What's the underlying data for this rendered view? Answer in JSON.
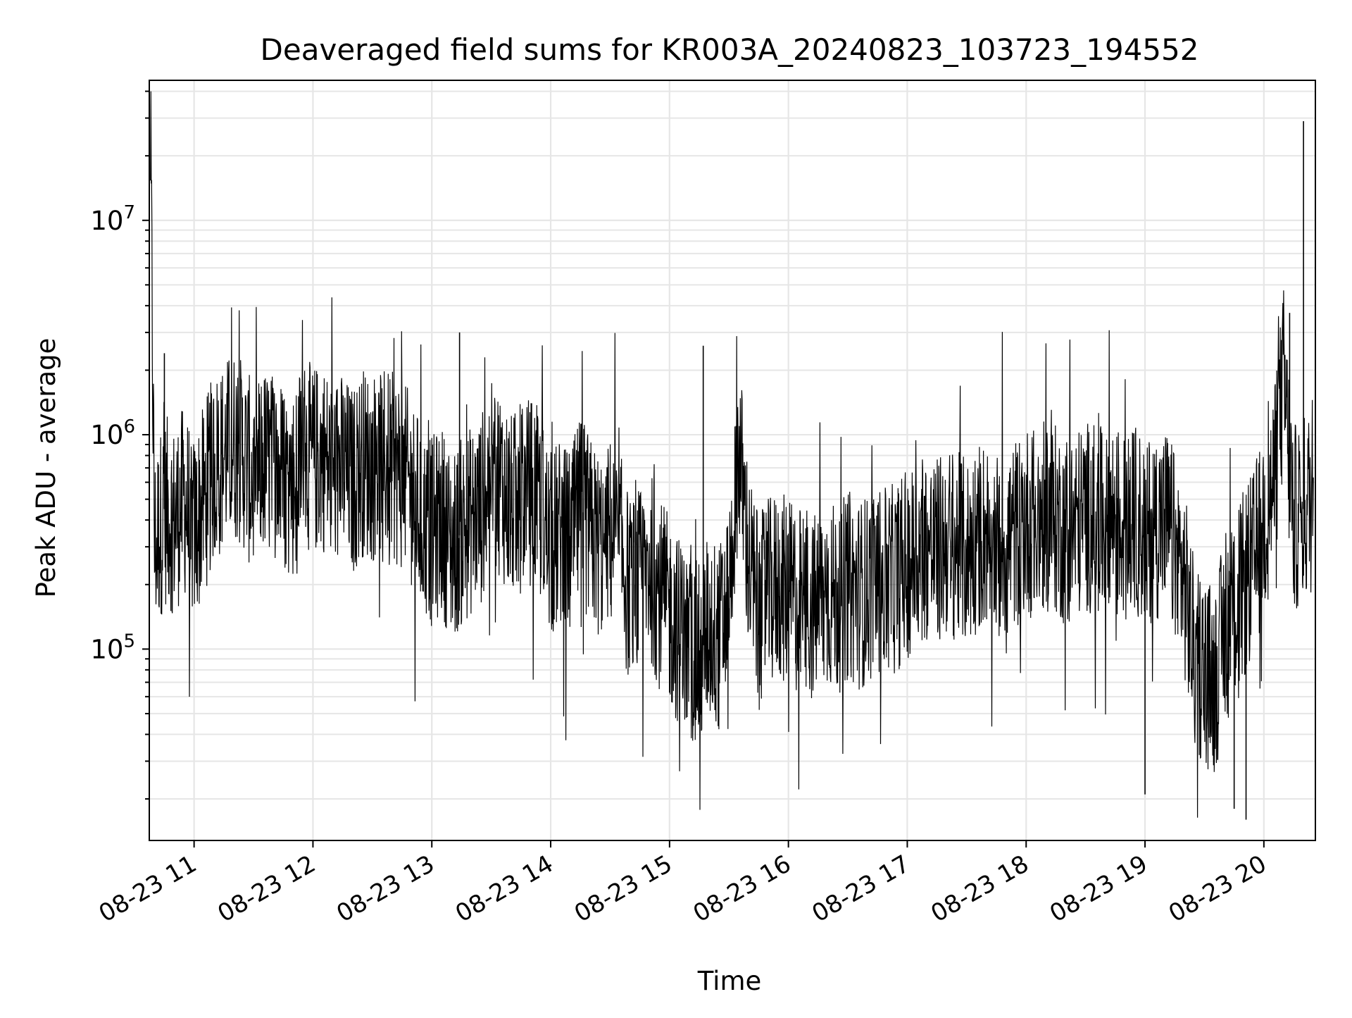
{
  "chart_data": {
    "type": "line",
    "title": "Deaveraged field sums for KR003A_20240823_103723_194552",
    "xlabel": "Time",
    "ylabel": "Peak ADU - average",
    "yscale": "log",
    "xlim": [
      "2024-08-23 10:37:23",
      "2024-08-23 20:26:00"
    ],
    "ylim": [
      12800,
      45000000
    ],
    "grid": true,
    "grid_color": "#e6e6e6",
    "line_color": "#000000",
    "x_tick_labels": [
      "08-23 11",
      "08-23 12",
      "08-23 13",
      "08-23 14",
      "08-23 15",
      "08-23 16",
      "08-23 17",
      "08-23 18",
      "08-23 19",
      "08-23 20"
    ],
    "x_ticks": [
      "2024-08-23 11:00",
      "2024-08-23 12:00",
      "2024-08-23 13:00",
      "2024-08-23 14:00",
      "2024-08-23 15:00",
      "2024-08-23 16:00",
      "2024-08-23 17:00",
      "2024-08-23 18:00",
      "2024-08-23 19:00",
      "2024-08-23 20:00"
    ],
    "y_ticks": [
      {
        "value": 100000,
        "base": "10",
        "exp": "5"
      },
      {
        "value": 1000000,
        "base": "10",
        "exp": "6"
      },
      {
        "value": 10000000,
        "base": "10",
        "exp": "7"
      }
    ],
    "series": [
      {
        "x": [
          "2024-08-23 10:38",
          "2024-08-23 10:40",
          "2024-08-23 10:45",
          "2024-08-23 10:50",
          "2024-08-23 10:55",
          "2024-08-23 11:00",
          "2024-08-23 11:05",
          "2024-08-23 11:10",
          "2024-08-23 11:15",
          "2024-08-23 11:20",
          "2024-08-23 11:25",
          "2024-08-23 11:30",
          "2024-08-23 11:35",
          "2024-08-23 11:40",
          "2024-08-23 11:45",
          "2024-08-23 11:50",
          "2024-08-23 11:55",
          "2024-08-23 12:00",
          "2024-08-23 12:05",
          "2024-08-23 12:10",
          "2024-08-23 12:15",
          "2024-08-23 12:20",
          "2024-08-23 12:25",
          "2024-08-23 12:30",
          "2024-08-23 12:35",
          "2024-08-23 12:40",
          "2024-08-23 12:45",
          "2024-08-23 12:50",
          "2024-08-23 12:55",
          "2024-08-23 13:00",
          "2024-08-23 13:05",
          "2024-08-23 13:10",
          "2024-08-23 13:15",
          "2024-08-23 13:20",
          "2024-08-23 13:25",
          "2024-08-23 13:30",
          "2024-08-23 13:35",
          "2024-08-23 13:40",
          "2024-08-23 13:45",
          "2024-08-23 13:50",
          "2024-08-23 13:55",
          "2024-08-23 14:00",
          "2024-08-23 14:05",
          "2024-08-23 14:10",
          "2024-08-23 14:15",
          "2024-08-23 14:20",
          "2024-08-23 14:25",
          "2024-08-23 14:30",
          "2024-08-23 14:35",
          "2024-08-23 14:40",
          "2024-08-23 14:45",
          "2024-08-23 14:50",
          "2024-08-23 14:55",
          "2024-08-23 15:00",
          "2024-08-23 15:05",
          "2024-08-23 15:10",
          "2024-08-23 15:15",
          "2024-08-23 15:20",
          "2024-08-23 15:25",
          "2024-08-23 15:30",
          "2024-08-23 15:35",
          "2024-08-23 15:40",
          "2024-08-23 15:45",
          "2024-08-23 15:50",
          "2024-08-23 15:55",
          "2024-08-23 16:00",
          "2024-08-23 16:05",
          "2024-08-23 16:10",
          "2024-08-23 16:15",
          "2024-08-23 16:20",
          "2024-08-23 16:25",
          "2024-08-23 16:30",
          "2024-08-23 16:35",
          "2024-08-23 16:40",
          "2024-08-23 16:45",
          "2024-08-23 16:50",
          "2024-08-23 16:55",
          "2024-08-23 17:00",
          "2024-08-23 17:05",
          "2024-08-23 17:10",
          "2024-08-23 17:15",
          "2024-08-23 17:20",
          "2024-08-23 17:25",
          "2024-08-23 17:30",
          "2024-08-23 17:35",
          "2024-08-23 17:40",
          "2024-08-23 17:45",
          "2024-08-23 17:50",
          "2024-08-23 17:55",
          "2024-08-23 18:00",
          "2024-08-23 18:05",
          "2024-08-23 18:10",
          "2024-08-23 18:15",
          "2024-08-23 18:20",
          "2024-08-23 18:25",
          "2024-08-23 18:30",
          "2024-08-23 18:35",
          "2024-08-23 18:40",
          "2024-08-23 18:45",
          "2024-08-23 18:50",
          "2024-08-23 18:55",
          "2024-08-23 19:00",
          "2024-08-23 19:05",
          "2024-08-23 19:10",
          "2024-08-23 19:15",
          "2024-08-23 19:20",
          "2024-08-23 19:25",
          "2024-08-23 19:30",
          "2024-08-23 19:35",
          "2024-08-23 19:40",
          "2024-08-23 19:45",
          "2024-08-23 19:50",
          "2024-08-23 19:55",
          "2024-08-23 20:00",
          "2024-08-23 20:05",
          "2024-08-23 20:10",
          "2024-08-23 20:15",
          "2024-08-23 20:20",
          "2024-08-23 20:25"
        ],
        "y": [
          23000000,
          300000,
          450000,
          400000,
          500000,
          350000,
          500000,
          700000,
          800000,
          900000,
          800000,
          600000,
          750000,
          700000,
          650000,
          600000,
          850000,
          750000,
          800000,
          650000,
          700000,
          600000,
          750000,
          700000,
          800000,
          700000,
          650000,
          550000,
          400000,
          350000,
          400000,
          300000,
          350000,
          400000,
          450000,
          700000,
          600000,
          450000,
          500000,
          550000,
          450000,
          300000,
          350000,
          300000,
          450000,
          350000,
          300000,
          350000,
          300000,
          180000,
          200000,
          250000,
          180000,
          150000,
          120000,
          100000,
          90000,
          130000,
          110000,
          180000,
          900000,
          250000,
          150000,
          180000,
          200000,
          180000,
          170000,
          150000,
          160000,
          180000,
          170000,
          200000,
          180000,
          190000,
          210000,
          200000,
          220000,
          250000,
          280000,
          300000,
          280000,
          320000,
          300000,
          280000,
          330000,
          350000,
          300000,
          320000,
          350000,
          400000,
          380000,
          420000,
          400000,
          350000,
          380000,
          420000,
          400000,
          380000,
          420000,
          350000,
          400000,
          350000,
          380000,
          400000,
          300000,
          200000,
          90000,
          80000,
          70000,
          120000,
          150000,
          200000,
          250000,
          400000,
          600000,
          1800000,
          400000,
          450000,
          500000
        ],
        "spikes": [
          {
            "x": "2024-08-23 10:38",
            "y": 23000000
          },
          {
            "x": "2024-08-23 10:45",
            "y": 2400000
          },
          {
            "x": "2024-08-23 13:14",
            "y": 3000000
          },
          {
            "x": "2024-08-23 15:17",
            "y": 2600000
          },
          {
            "x": "2024-08-23 20:13",
            "y": 3700000
          },
          {
            "x": "2024-08-23 20:20",
            "y": 29000000
          },
          {
            "x": "2024-08-23 19:00",
            "y": 21000
          },
          {
            "x": "2024-08-23 19:45",
            "y": 18000
          },
          {
            "x": "2024-08-23 19:51",
            "y": 16000
          }
        ]
      }
    ]
  }
}
